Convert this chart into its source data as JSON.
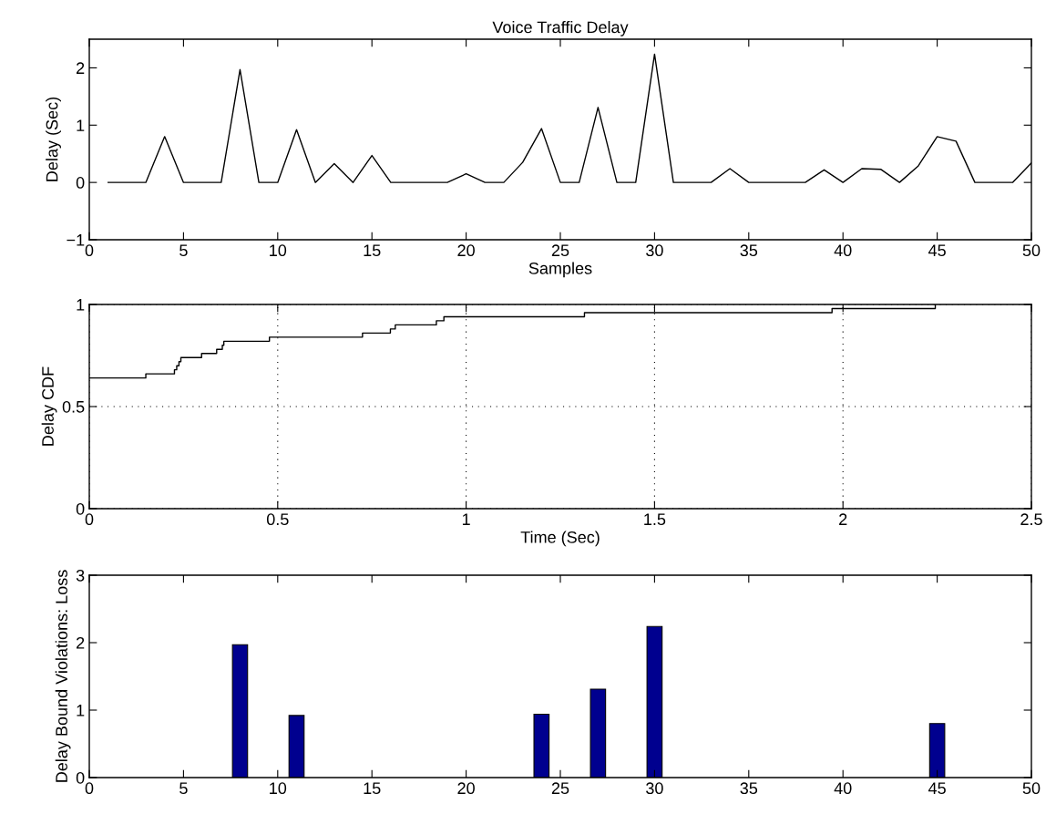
{
  "chart_data": [
    {
      "type": "line",
      "title": "Voice Traffic Delay",
      "xlabel": "Samples",
      "ylabel": "Delay (Sec)",
      "x": [
        1,
        2,
        3,
        4,
        5,
        6,
        7,
        8,
        9,
        10,
        11,
        12,
        13,
        14,
        15,
        16,
        17,
        18,
        19,
        20,
        21,
        22,
        23,
        24,
        25,
        26,
        27,
        28,
        29,
        30,
        31,
        32,
        33,
        34,
        35,
        36,
        37,
        38,
        39,
        40,
        41,
        42,
        43,
        44,
        45,
        46,
        47,
        48,
        49,
        50
      ],
      "series": [
        {
          "color": "#000000",
          "values": [
            0,
            0,
            0,
            0.8,
            0,
            0,
            0,
            1.97,
            0,
            0,
            0.92,
            0,
            0.33,
            0,
            0.47,
            0,
            0,
            0,
            0,
            0.15,
            0,
            0,
            0.35,
            0.94,
            0,
            0,
            1.31,
            0,
            0,
            2.24,
            0,
            0,
            0,
            0.24,
            0,
            0,
            0,
            0,
            0.22,
            0,
            0.24,
            0.23,
            0,
            0.29,
            0.8,
            0.72,
            0,
            0,
            0,
            0.34
          ]
        }
      ],
      "xlim": [
        0,
        50
      ],
      "xticks": [
        0,
        5,
        10,
        15,
        20,
        25,
        30,
        35,
        40,
        45,
        50
      ],
      "ylim": [
        -1,
        2.5
      ],
      "yticks": [
        {
          "value": -1,
          "label": "−1"
        },
        0,
        1,
        2
      ],
      "grid": false
    },
    {
      "type": "step",
      "xlabel": "Time (Sec)",
      "ylabel": "Delay CDF",
      "x": [
        0,
        0.15,
        0.226,
        0.232,
        0.238,
        0.243,
        0.298,
        0.338,
        0.353,
        0.357,
        0.478,
        0.725,
        0.799,
        0.812,
        0.921,
        0.941,
        1.314,
        1.971,
        2.245
      ],
      "series": [
        {
          "color": "#000000",
          "values": [
            0.64,
            0.66,
            0.68,
            0.7,
            0.72,
            0.74,
            0.76,
            0.78,
            0.8,
            0.82,
            0.84,
            0.86,
            0.88,
            0.9,
            0.92,
            0.94,
            0.96,
            0.98,
            1.0
          ]
        }
      ],
      "xlim": [
        0,
        2.5
      ],
      "xticks": [
        0,
        0.5,
        1,
        1.5,
        2,
        2.5
      ],
      "ylim": [
        0,
        1
      ],
      "yticks": [
        0,
        0.5,
        1
      ],
      "grid": true
    },
    {
      "type": "bar",
      "ylabel": "Delay Bound Violations: Loss",
      "x": [
        8,
        11,
        24,
        27,
        30,
        45
      ],
      "series": [
        {
          "color": "#00008f",
          "values": [
            1.97,
            0.92,
            0.94,
            1.31,
            2.24,
            0.8
          ]
        }
      ],
      "xlim": [
        0,
        50
      ],
      "xticks": [
        0,
        5,
        10,
        15,
        20,
        25,
        30,
        35,
        40,
        45,
        50
      ],
      "ylim": [
        0,
        3
      ],
      "yticks": [
        0,
        1,
        2,
        3
      ],
      "grid": false
    }
  ]
}
